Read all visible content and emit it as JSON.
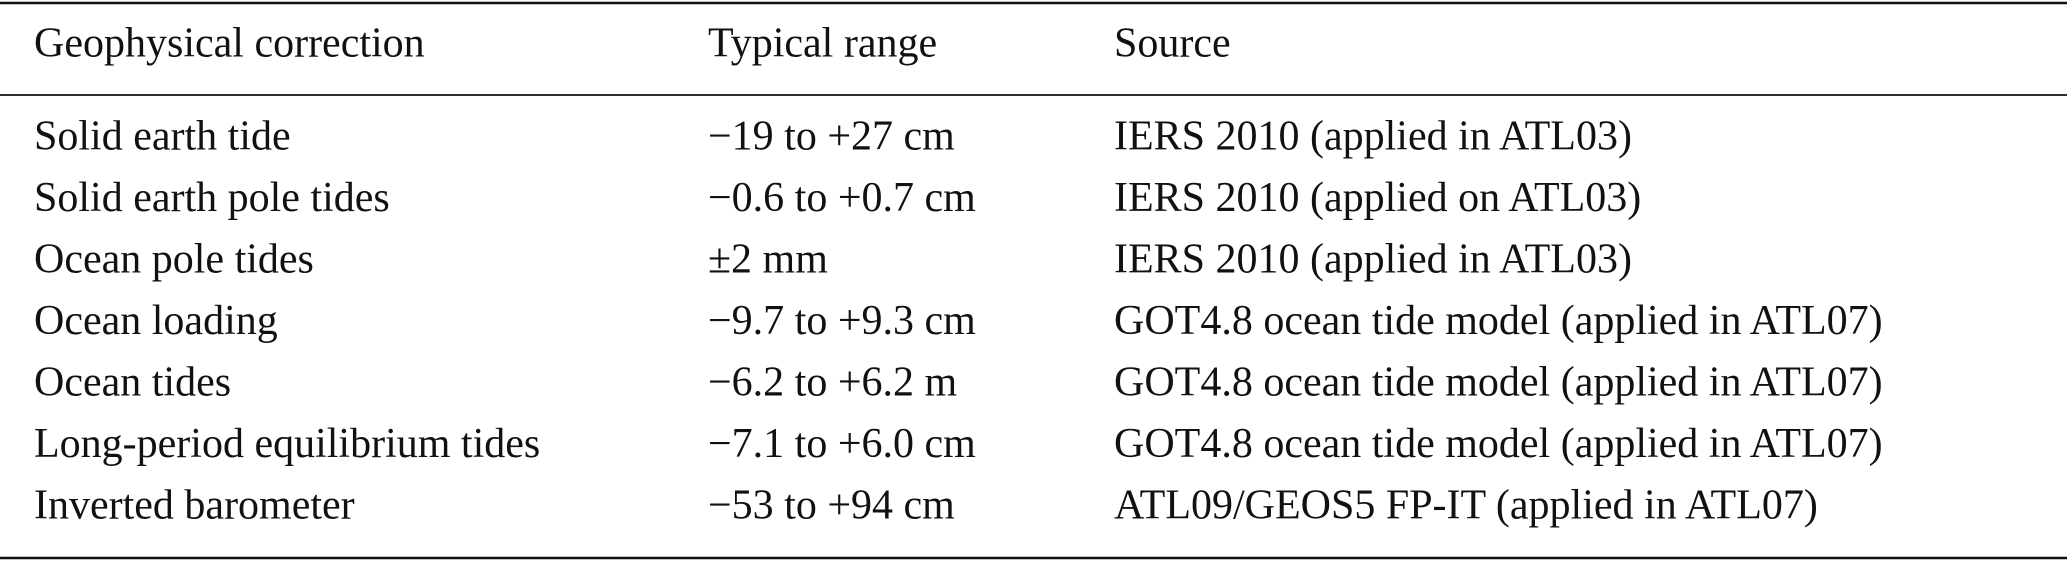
{
  "table": {
    "header": [
      "Geophysical correction",
      "Typical range",
      "Source"
    ],
    "rows": [
      [
        "Solid earth tide",
        "−19 to +27 cm",
        "IERS 2010 (applied in ATL03)"
      ],
      [
        "Solid earth pole tides",
        "−0.6 to +0.7 cm",
        "IERS 2010 (applied on ATL03)"
      ],
      [
        "Ocean pole tides",
        "±2 mm",
        "IERS 2010 (applied in ATL03)"
      ],
      [
        "Ocean loading",
        "−9.7 to +9.3 cm",
        "GOT4.8 ocean tide model (applied in ATL07)"
      ],
      [
        "Ocean tides",
        "−6.2 to +6.2 m",
        "GOT4.8 ocean tide model (applied in ATL07)"
      ],
      [
        "Long-period equilibrium tides",
        "−7.1 to +6.0 cm",
        "GOT4.8 ocean tide model (applied in ATL07)"
      ],
      [
        "Inverted barometer",
        "−53 to +94 cm",
        "ATL09/GEOS5 FP-IT (applied in ATL07)"
      ]
    ]
  }
}
